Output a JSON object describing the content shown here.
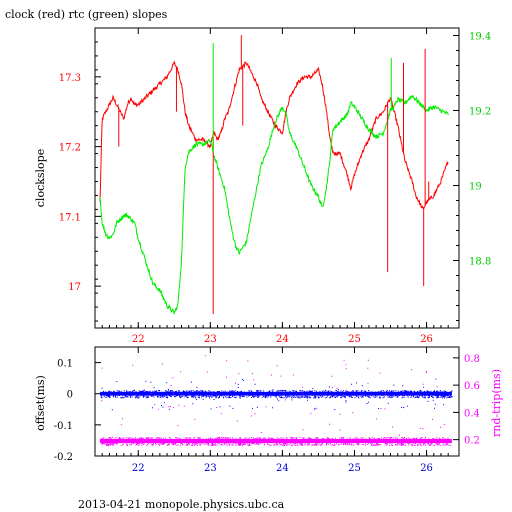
{
  "title": "clock (red) rtc (green) slopes",
  "footer": "2013-04-21 monopole.physics.ubc.ca",
  "colors": {
    "clock": "#ff0000",
    "rtc": "#00ee00",
    "offset": "#0000ff",
    "rndtrip": "#ff00ff",
    "axis": "#000000",
    "bottom_ticks": "#0000cc"
  },
  "chart_data": [
    {
      "type": "line",
      "title": "clock (red) rtc (green) slopes",
      "xlabel": "",
      "ylabel": "clockslope",
      "y2label": "",
      "xlim": [
        21.4,
        26.45
      ],
      "ylim": [
        16.94,
        17.37
      ],
      "y2lim": [
        18.62,
        19.42
      ],
      "x_ticks": [
        "22",
        "23",
        "24",
        "25",
        "26"
      ],
      "y_ticks": [
        "17",
        "17.1",
        "17.2",
        "17.3"
      ],
      "y2_ticks": [
        "18.8",
        "19",
        "19.2",
        "19.4"
      ],
      "grid": false,
      "series": [
        {
          "name": "clock",
          "axis": "left",
          "x": [
            21.47,
            21.5,
            21.55,
            21.6,
            21.65,
            21.7,
            21.75,
            21.8,
            21.85,
            21.9,
            21.95,
            22.0,
            22.1,
            22.2,
            22.3,
            22.4,
            22.5,
            22.55,
            22.6,
            22.65,
            22.7,
            22.75,
            22.8,
            22.9,
            23.0,
            23.05,
            23.1,
            23.15,
            23.2,
            23.25,
            23.3,
            23.35,
            23.4,
            23.5,
            23.55,
            23.6,
            23.65,
            23.7,
            23.8,
            23.9,
            24.0,
            24.05,
            24.1,
            24.2,
            24.3,
            24.4,
            24.5,
            24.55,
            24.6,
            24.65,
            24.7,
            24.8,
            24.9,
            24.95,
            25.0,
            25.1,
            25.2,
            25.3,
            25.4,
            25.45,
            25.5,
            25.55,
            25.6,
            25.7,
            25.8,
            25.85,
            25.9,
            25.95,
            26.0,
            26.1,
            26.2,
            26.3
          ],
          "y": [
            17.12,
            17.24,
            17.25,
            17.26,
            17.27,
            17.26,
            17.25,
            17.24,
            17.26,
            17.27,
            17.26,
            17.26,
            17.27,
            17.28,
            17.29,
            17.3,
            17.32,
            17.31,
            17.29,
            17.25,
            17.23,
            17.22,
            17.21,
            17.21,
            17.2,
            17.22,
            17.21,
            17.22,
            17.24,
            17.25,
            17.27,
            17.29,
            17.31,
            17.32,
            17.31,
            17.3,
            17.29,
            17.27,
            17.25,
            17.23,
            17.22,
            17.25,
            17.27,
            17.29,
            17.3,
            17.3,
            17.31,
            17.29,
            17.26,
            17.22,
            17.19,
            17.19,
            17.16,
            17.14,
            17.16,
            17.19,
            17.21,
            17.24,
            17.25,
            17.26,
            17.27,
            17.25,
            17.23,
            17.18,
            17.15,
            17.13,
            17.12,
            17.11,
            17.12,
            17.13,
            17.15,
            17.18
          ]
        },
        {
          "name": "rtc",
          "axis": "right",
          "x": [
            21.47,
            21.5,
            21.55,
            21.6,
            21.65,
            21.7,
            21.75,
            21.8,
            21.85,
            21.9,
            21.95,
            22.0,
            22.1,
            22.2,
            22.3,
            22.4,
            22.5,
            22.55,
            22.6,
            22.65,
            22.7,
            22.75,
            22.8,
            22.9,
            23.0,
            23.05,
            23.1,
            23.15,
            23.2,
            23.25,
            23.3,
            23.35,
            23.4,
            23.5,
            23.55,
            23.6,
            23.65,
            23.7,
            23.8,
            23.9,
            24.0,
            24.05,
            24.1,
            24.2,
            24.3,
            24.4,
            24.5,
            24.55,
            24.6,
            24.65,
            24.7,
            24.8,
            24.9,
            24.95,
            25.0,
            25.1,
            25.2,
            25.3,
            25.4,
            25.45,
            25.5,
            25.55,
            25.6,
            25.7,
            25.8,
            25.85,
            25.9,
            25.95,
            26.0,
            26.1,
            26.2,
            26.3
          ],
          "y": [
            18.97,
            18.9,
            18.87,
            18.86,
            18.87,
            18.9,
            18.91,
            18.92,
            18.92,
            18.91,
            18.9,
            18.86,
            18.8,
            18.74,
            18.72,
            18.68,
            18.66,
            18.68,
            18.8,
            19.05,
            19.09,
            19.1,
            19.11,
            19.11,
            19.12,
            19.08,
            19.05,
            19.02,
            18.99,
            18.93,
            18.88,
            18.84,
            18.82,
            18.85,
            18.9,
            18.95,
            19.0,
            19.05,
            19.1,
            19.17,
            19.21,
            19.19,
            19.14,
            19.1,
            19.05,
            19.0,
            18.97,
            18.94,
            18.98,
            19.05,
            19.15,
            19.17,
            19.19,
            19.22,
            19.21,
            19.18,
            19.15,
            19.13,
            19.14,
            19.17,
            19.2,
            19.21,
            19.23,
            19.22,
            19.24,
            19.23,
            19.22,
            19.21,
            19.2,
            19.21,
            19.2,
            19.19
          ]
        }
      ],
      "spikes": [
        {
          "series": "clock",
          "x": 21.73,
          "y": 17.2
        },
        {
          "series": "clock",
          "x": 22.53,
          "y": 17.25
        },
        {
          "series": "clock",
          "x": 23.04,
          "y": 16.96
        },
        {
          "series": "rtc",
          "x": 23.04,
          "y": 19.38
        },
        {
          "series": "clock",
          "x": 23.43,
          "y": 17.36
        },
        {
          "series": "clock",
          "x": 23.45,
          "y": 17.23
        },
        {
          "series": "clock",
          "x": 25.46,
          "y": 17.02
        },
        {
          "series": "rtc",
          "x": 25.51,
          "y": 19.34
        },
        {
          "series": "clock",
          "x": 25.68,
          "y": 17.32
        },
        {
          "series": "clock",
          "x": 25.96,
          "y": 17.0
        },
        {
          "series": "clock",
          "x": 25.98,
          "y": 17.34
        },
        {
          "series": "clock",
          "x": 26.03,
          "y": 17.15
        }
      ]
    },
    {
      "type": "scatter",
      "xlabel": "",
      "ylabel": "offset(ms)",
      "y2label": "rnd-trip(ms)",
      "xlim": [
        21.4,
        26.45
      ],
      "ylim": [
        -0.2,
        0.15
      ],
      "y2lim": [
        0.08,
        0.88
      ],
      "x_ticks": [
        "22",
        "23",
        "24",
        "25",
        "26"
      ],
      "y_ticks": [
        "-0.2",
        "-0.1",
        "0",
        "0.1"
      ],
      "y2_ticks": [
        "0.2",
        "0.4",
        "0.6",
        "0.8"
      ],
      "grid": false,
      "series": [
        {
          "name": "offset",
          "axis": "left",
          "x_range": [
            21.47,
            26.35
          ],
          "center": 0.0,
          "band": [
            -0.012,
            0.012
          ],
          "outlier_range": [
            -0.05,
            0.05
          ]
        },
        {
          "name": "rnd-trip",
          "axis": "right",
          "x_range": [
            21.47,
            26.35
          ],
          "center": 0.19,
          "band": [
            0.16,
            0.22
          ],
          "outlier_range": [
            0.16,
            0.82
          ]
        }
      ]
    }
  ]
}
